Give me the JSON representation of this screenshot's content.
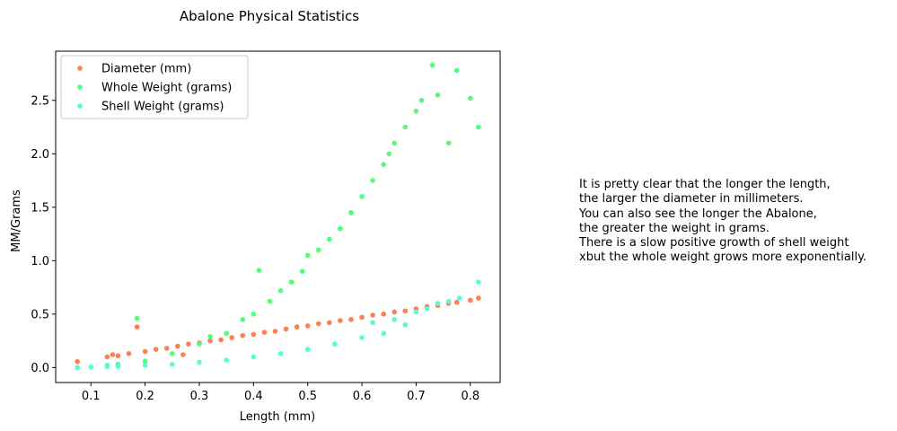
{
  "chart_data": {
    "type": "scatter",
    "title": "Abalone Physical Statistics",
    "xlabel": "Length (mm)",
    "ylabel": "MM/Grams",
    "xlim": [
      0.035,
      0.855
    ],
    "ylim": [
      -0.14,
      2.96
    ],
    "xticks": [
      0.1,
      0.2,
      0.3,
      0.4,
      0.5,
      0.6,
      0.7,
      0.8
    ],
    "yticks": [
      0.0,
      0.5,
      1.0,
      1.5,
      2.0,
      2.5
    ],
    "xtick_labels": [
      "0.1",
      "0.2",
      "0.3",
      "0.4",
      "0.5",
      "0.6",
      "0.7",
      "0.8"
    ],
    "ytick_labels": [
      "0.0",
      "0.5",
      "1.0",
      "1.5",
      "2.0",
      "2.5"
    ],
    "grid": false,
    "legend_position": "top-left",
    "series": [
      {
        "name": "Diameter (mm)",
        "color": "#ff7f50",
        "points": [
          [
            0.075,
            0.055
          ],
          [
            0.13,
            0.1
          ],
          [
            0.14,
            0.12
          ],
          [
            0.15,
            0.11
          ],
          [
            0.17,
            0.13
          ],
          [
            0.185,
            0.38
          ],
          [
            0.2,
            0.15
          ],
          [
            0.22,
            0.17
          ],
          [
            0.24,
            0.18
          ],
          [
            0.26,
            0.2
          ],
          [
            0.27,
            0.12
          ],
          [
            0.28,
            0.22
          ],
          [
            0.3,
            0.23
          ],
          [
            0.32,
            0.25
          ],
          [
            0.34,
            0.26
          ],
          [
            0.36,
            0.28
          ],
          [
            0.38,
            0.3
          ],
          [
            0.4,
            0.31
          ],
          [
            0.42,
            0.33
          ],
          [
            0.44,
            0.34
          ],
          [
            0.46,
            0.36
          ],
          [
            0.48,
            0.38
          ],
          [
            0.5,
            0.39
          ],
          [
            0.52,
            0.41
          ],
          [
            0.54,
            0.42
          ],
          [
            0.56,
            0.44
          ],
          [
            0.58,
            0.45
          ],
          [
            0.6,
            0.47
          ],
          [
            0.62,
            0.49
          ],
          [
            0.64,
            0.5
          ],
          [
            0.66,
            0.52
          ],
          [
            0.68,
            0.53
          ],
          [
            0.7,
            0.55
          ],
          [
            0.72,
            0.57
          ],
          [
            0.74,
            0.58
          ],
          [
            0.76,
            0.6
          ],
          [
            0.775,
            0.61
          ],
          [
            0.8,
            0.63
          ],
          [
            0.815,
            0.65
          ]
        ]
      },
      {
        "name": "Whole Weight (grams)",
        "color": "#50ff78",
        "points": [
          [
            0.075,
            0.0
          ],
          [
            0.13,
            0.02
          ],
          [
            0.15,
            0.03
          ],
          [
            0.185,
            0.46
          ],
          [
            0.2,
            0.06
          ],
          [
            0.25,
            0.13
          ],
          [
            0.3,
            0.22
          ],
          [
            0.32,
            0.29
          ],
          [
            0.35,
            0.32
          ],
          [
            0.38,
            0.45
          ],
          [
            0.4,
            0.5
          ],
          [
            0.41,
            0.91
          ],
          [
            0.43,
            0.62
          ],
          [
            0.45,
            0.72
          ],
          [
            0.47,
            0.8
          ],
          [
            0.49,
            0.9
          ],
          [
            0.5,
            1.05
          ],
          [
            0.52,
            1.1
          ],
          [
            0.54,
            1.2
          ],
          [
            0.56,
            1.3
          ],
          [
            0.58,
            1.45
          ],
          [
            0.6,
            1.6
          ],
          [
            0.62,
            1.75
          ],
          [
            0.64,
            1.9
          ],
          [
            0.65,
            2.0
          ],
          [
            0.66,
            2.1
          ],
          [
            0.68,
            2.25
          ],
          [
            0.7,
            2.4
          ],
          [
            0.71,
            2.5
          ],
          [
            0.73,
            2.83
          ],
          [
            0.74,
            2.55
          ],
          [
            0.76,
            2.1
          ],
          [
            0.775,
            2.78
          ],
          [
            0.8,
            2.52
          ],
          [
            0.815,
            2.25
          ]
        ]
      },
      {
        "name": "Shell Weight (grams)",
        "color": "#50ffd4",
        "points": [
          [
            0.075,
            0.0
          ],
          [
            0.1,
            0.005
          ],
          [
            0.13,
            0.01
          ],
          [
            0.15,
            0.01
          ],
          [
            0.2,
            0.02
          ],
          [
            0.25,
            0.03
          ],
          [
            0.3,
            0.05
          ],
          [
            0.35,
            0.07
          ],
          [
            0.4,
            0.1
          ],
          [
            0.45,
            0.13
          ],
          [
            0.5,
            0.17
          ],
          [
            0.55,
            0.22
          ],
          [
            0.6,
            0.28
          ],
          [
            0.62,
            0.42
          ],
          [
            0.64,
            0.32
          ],
          [
            0.66,
            0.45
          ],
          [
            0.68,
            0.4
          ],
          [
            0.7,
            0.52
          ],
          [
            0.72,
            0.55
          ],
          [
            0.74,
            0.6
          ],
          [
            0.76,
            0.62
          ],
          [
            0.78,
            0.65
          ],
          [
            0.815,
            0.8
          ]
        ]
      }
    ]
  },
  "annotation": {
    "lines": [
      "It is pretty clear that the longer the length,",
      "the larger the diameter in millimeters.",
      "You can also see the longer the Abalone,",
      "the greater the weight in grams.",
      "There is a slow positive growth of shell weight",
      "xbut the whole weight grows more exponentially."
    ]
  }
}
